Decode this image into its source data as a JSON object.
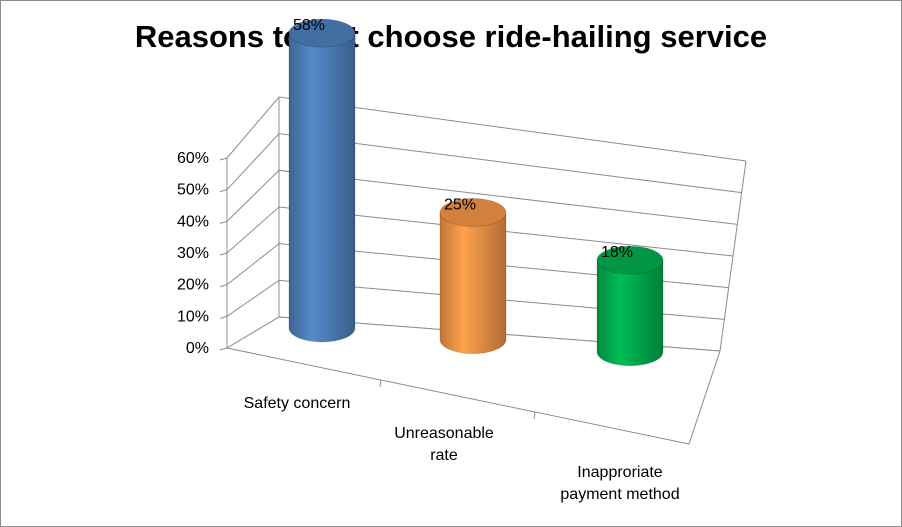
{
  "chart_data": {
    "type": "bar",
    "style": "3d-cylinder",
    "title": "Reasons to not choose ride-hailing service",
    "xlabel": "",
    "ylabel": "",
    "ylim": [
      0,
      0.6
    ],
    "y_ticks": [
      0,
      0.1,
      0.2,
      0.3,
      0.4,
      0.5,
      0.6
    ],
    "y_tick_labels": [
      "0%",
      "10%",
      "20%",
      "30%",
      "40%",
      "50%",
      "60%"
    ],
    "grid": true,
    "legend": "none",
    "categories": [
      [
        "Safety concern"
      ],
      [
        "Unreasonable",
        "rate"
      ],
      [
        "Inapproriate",
        "payment method"
      ]
    ],
    "values": [
      0.58,
      0.25,
      0.18
    ],
    "data_labels": [
      "58%",
      "25%",
      "18%"
    ],
    "colors": [
      "#4f81bd",
      "#f79646",
      "#00b050"
    ]
  }
}
